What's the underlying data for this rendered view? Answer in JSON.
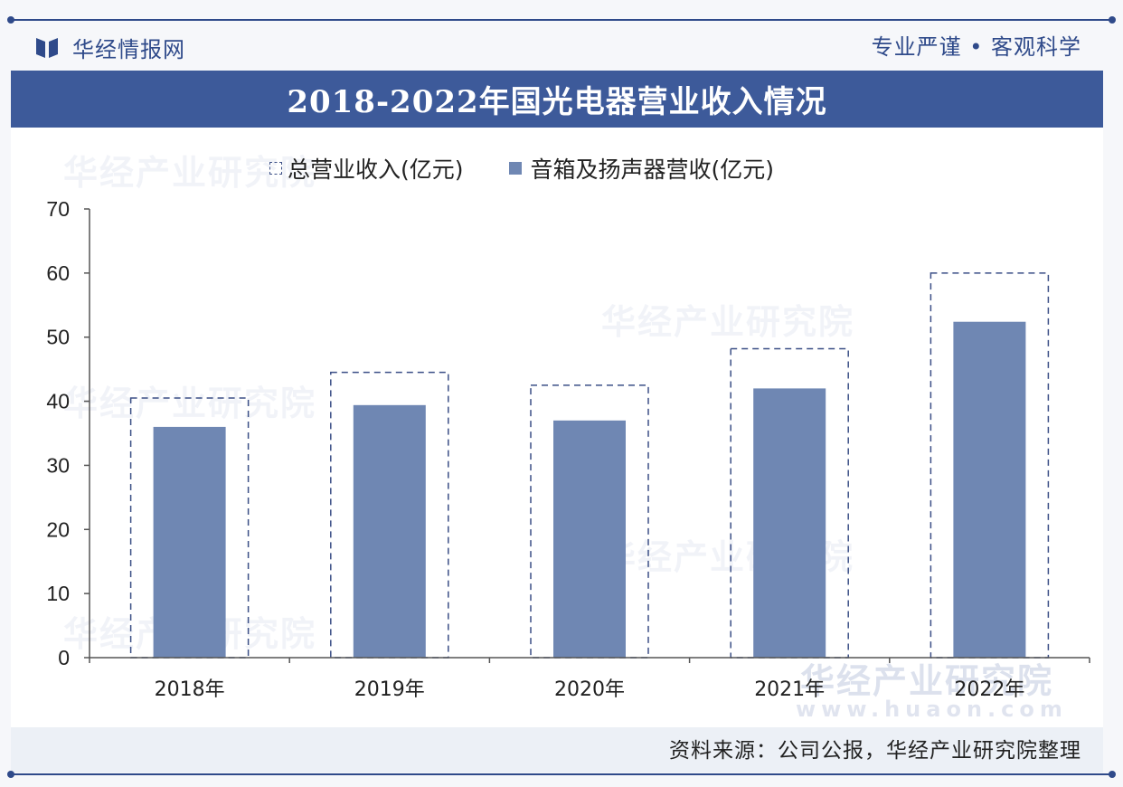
{
  "brand": {
    "name": "华经情报网",
    "slogan": "专业严谨 • 客观科学"
  },
  "title": "2018-2022年国光电器营业收入情况",
  "legend": {
    "series1": "总营业收入(亿元)",
    "series2": "音箱及扬声器营收(亿元)"
  },
  "source": "资料来源：公司公报，华经产业研究院整理",
  "watermark": {
    "text": "华经产业研究院",
    "url": "www.huaon.com"
  },
  "colors": {
    "accent": "#3d5a9a",
    "bar": "#6f87b3",
    "dash": "#3b4f86"
  },
  "chart_data": {
    "type": "bar",
    "categories": [
      "2018年",
      "2019年",
      "2020年",
      "2021年",
      "2022年"
    ],
    "series": [
      {
        "name": "总营业收入(亿元)",
        "values": [
          40.5,
          44.5,
          42.5,
          48.2,
          60.0
        ],
        "style": "dashed-outline"
      },
      {
        "name": "音箱及扬声器营收(亿元)",
        "values": [
          36.0,
          39.4,
          37.0,
          42.0,
          52.4
        ],
        "style": "solid"
      }
    ],
    "ylim": [
      0,
      70
    ],
    "yticks": [
      0,
      10,
      20,
      30,
      40,
      50,
      60,
      70
    ],
    "grid": false,
    "legend_position": "top"
  }
}
